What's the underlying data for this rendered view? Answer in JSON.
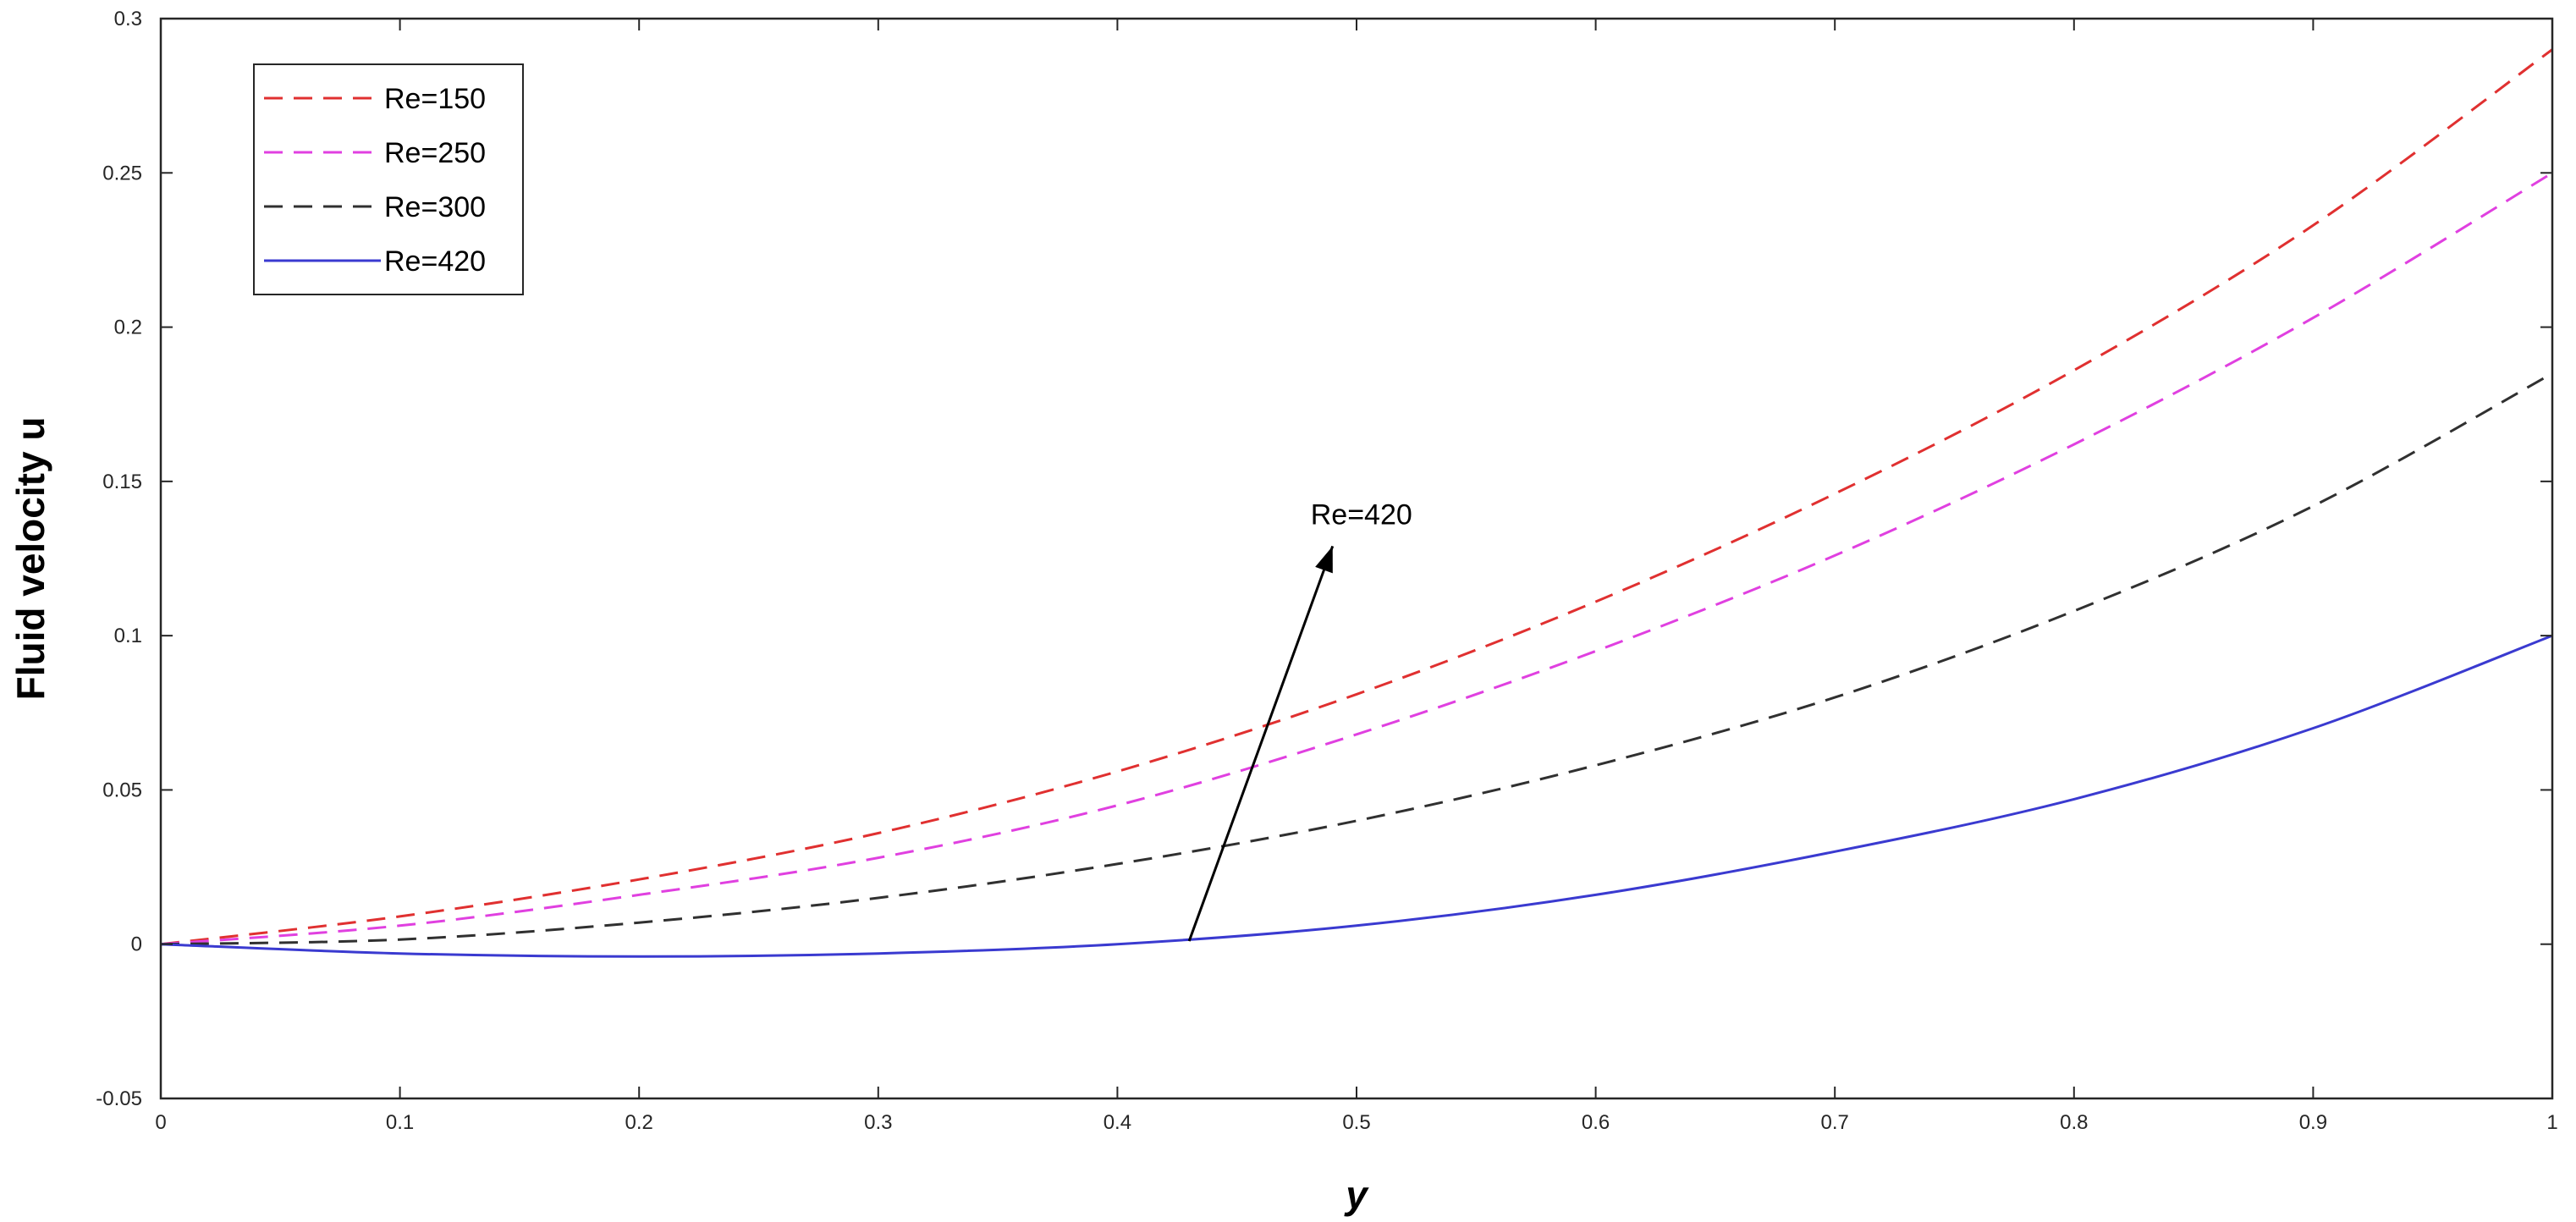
{
  "chart_data": {
    "type": "line",
    "title": "",
    "xlabel": "y",
    "ylabel": "Fluid velocity u",
    "xlim": [
      0,
      1
    ],
    "ylim": [
      -0.05,
      0.3
    ],
    "xticks": [
      0,
      0.1,
      0.2,
      0.3,
      0.4,
      0.5,
      0.6,
      0.7,
      0.8,
      0.9,
      1
    ],
    "xtick_labels": [
      "0",
      "0.1",
      "0.2",
      "0.3",
      "0.4",
      "0.5",
      "0.6",
      "0.7",
      "0.8",
      "0.9",
      "1"
    ],
    "yticks": [
      -0.05,
      0,
      0.05,
      0.1,
      0.15,
      0.2,
      0.25,
      0.3
    ],
    "ytick_labels": [
      "-0.05",
      "0",
      "0.05",
      "0.1",
      "0.15",
      "0.2",
      "0.25",
      "0.3"
    ],
    "grid": false,
    "legend_position": "top-left",
    "x": [
      0,
      0.1,
      0.2,
      0.3,
      0.4,
      0.5,
      0.6,
      0.7,
      0.8,
      0.9,
      1.0
    ],
    "series": [
      {
        "name": "Re=150",
        "color": "#e03030",
        "style": "dashed",
        "values": [
          0,
          0.009,
          0.021,
          0.036,
          0.056,
          0.081,
          0.111,
          0.146,
          0.186,
          0.233,
          0.29
        ]
      },
      {
        "name": "Re=250",
        "color": "#e040e0",
        "style": "dashed",
        "values": [
          0,
          0.006,
          0.016,
          0.028,
          0.045,
          0.068,
          0.095,
          0.126,
          0.162,
          0.203,
          0.25
        ]
      },
      {
        "name": "Re=300",
        "color": "#303030",
        "style": "dashed",
        "values": [
          0,
          0.0015,
          0.007,
          0.015,
          0.026,
          0.04,
          0.058,
          0.08,
          0.108,
          0.142,
          0.185
        ]
      },
      {
        "name": "Re=420",
        "color": "#3a3ad0",
        "style": "solid",
        "values": [
          0,
          -0.003,
          -0.004,
          -0.003,
          0.0,
          0.006,
          0.016,
          0.03,
          0.047,
          0.07,
          0.1
        ]
      }
    ],
    "annotation": {
      "text": "Re=420",
      "arrow_from": [
        0.43,
        0.001
      ],
      "arrow_to": [
        0.49,
        0.129
      ]
    }
  }
}
